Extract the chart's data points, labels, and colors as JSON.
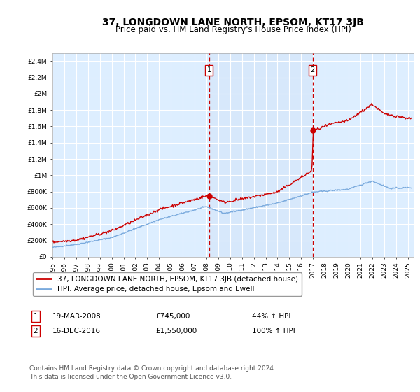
{
  "title": "37, LONGDOWN LANE NORTH, EPSOM, KT17 3JB",
  "subtitle": "Price paid vs. HM Land Registry's House Price Index (HPI)",
  "ylim": [
    0,
    2500000
  ],
  "yticks": [
    0,
    200000,
    400000,
    600000,
    800000,
    1000000,
    1200000,
    1400000,
    1600000,
    1800000,
    2000000,
    2200000,
    2400000
  ],
  "ytick_labels": [
    "£0",
    "£200K",
    "£400K",
    "£600K",
    "£800K",
    "£1M",
    "£1.2M",
    "£1.4M",
    "£1.6M",
    "£1.8M",
    "£2M",
    "£2.2M",
    "£2.4M"
  ],
  "xlim_start": 1995.0,
  "xlim_end": 2025.5,
  "xtick_years": [
    1995,
    1996,
    1997,
    1998,
    1999,
    2000,
    2001,
    2002,
    2003,
    2004,
    2005,
    2006,
    2007,
    2008,
    2009,
    2010,
    2011,
    2012,
    2013,
    2014,
    2015,
    2016,
    2017,
    2018,
    2019,
    2020,
    2021,
    2022,
    2023,
    2024,
    2025
  ],
  "sale1_x": 2008.22,
  "sale1_y": 745000,
  "sale1_label": "1",
  "sale2_x": 2016.96,
  "sale2_y": 1550000,
  "sale2_label": "2",
  "sale_marker_color": "#cc0000",
  "hpi_line_color": "#7aaadd",
  "price_line_color": "#cc0000",
  "vline_color": "#cc0000",
  "background_color": "#ffffff",
  "plot_bg_color": "#ddeeff",
  "grid_color": "#ffffff",
  "legend_line1": "37, LONGDOWN LANE NORTH, EPSOM, KT17 3JB (detached house)",
  "legend_line2": "HPI: Average price, detached house, Epsom and Ewell",
  "table_row1": [
    "1",
    "19-MAR-2008",
    "£745,000",
    "44% ↑ HPI"
  ],
  "table_row2": [
    "2",
    "16-DEC-2016",
    "£1,550,000",
    "100% ↑ HPI"
  ],
  "footnote": "Contains HM Land Registry data © Crown copyright and database right 2024.\nThis data is licensed under the Open Government Licence v3.0.",
  "title_fontsize": 10,
  "subtitle_fontsize": 8.5,
  "tick_fontsize": 6.5,
  "legend_fontsize": 7.5,
  "table_fontsize": 7.5,
  "footnote_fontsize": 6.5
}
